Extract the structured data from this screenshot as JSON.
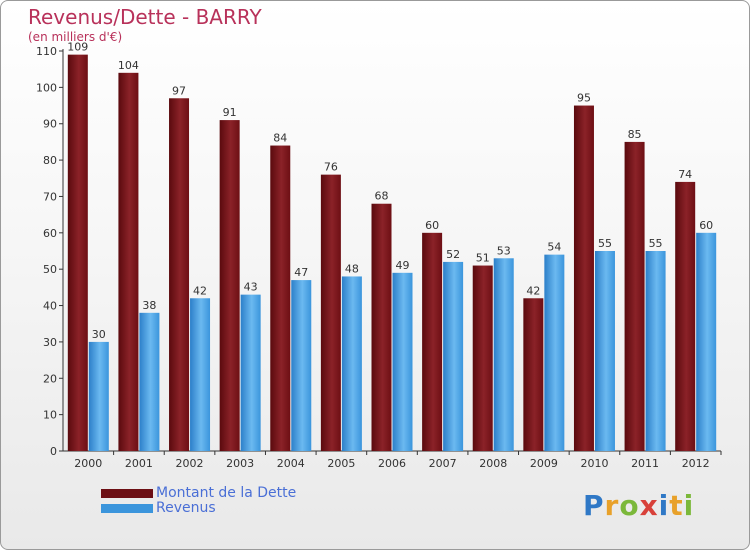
{
  "header": {
    "title": "Revenus/Dette - BARRY",
    "subtitle": "(en milliers d'€)"
  },
  "colors": {
    "series_dette": "#6d0f14",
    "series_revenus": "#3b95dc",
    "title_color": "#b8315a",
    "legend_text": "#4a6fd6"
  },
  "chart_data": {
    "type": "bar",
    "title": "Revenus/Dette - BARRY",
    "subtitle": "(en milliers d'€)",
    "categories": [
      "2000",
      "2001",
      "2002",
      "2003",
      "2004",
      "2005",
      "2006",
      "2007",
      "2008",
      "2009",
      "2010",
      "2011",
      "2012"
    ],
    "series": [
      {
        "name": "Montant de la Dette",
        "values": [
          109,
          104,
          97,
          91,
          84,
          76,
          68,
          60,
          51,
          42,
          95,
          85,
          74
        ]
      },
      {
        "name": "Revenus",
        "values": [
          30,
          38,
          42,
          43,
          47,
          48,
          49,
          52,
          53,
          54,
          55,
          55,
          60
        ]
      }
    ],
    "ylim": [
      0,
      110
    ],
    "yticks": [
      0,
      10,
      20,
      30,
      40,
      50,
      60,
      70,
      80,
      90,
      100,
      110
    ],
    "grid": false,
    "legend_position": "bottom-left"
  },
  "legend": {
    "items": [
      {
        "label": "Montant de la Dette",
        "color": "#6d0f14"
      },
      {
        "label": "Revenus",
        "color": "#3b95dc"
      }
    ]
  },
  "logo": {
    "text": "Proxiti",
    "letters": [
      {
        "ch": "P",
        "color": "#2f78c6"
      },
      {
        "ch": "r",
        "color": "#e8a12a"
      },
      {
        "ch": "o",
        "color": "#7bb83a"
      },
      {
        "ch": "x",
        "color": "#d8413a"
      },
      {
        "ch": "i",
        "color": "#2f78c6"
      },
      {
        "ch": "t",
        "color": "#e8a12a"
      },
      {
        "ch": "i",
        "color": "#7bb83a"
      }
    ]
  }
}
